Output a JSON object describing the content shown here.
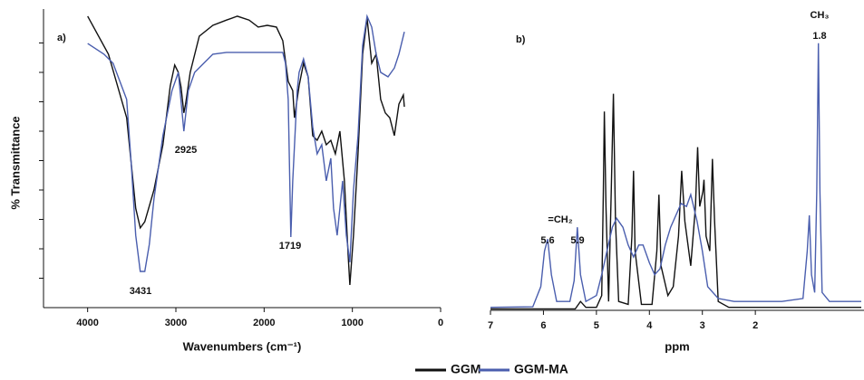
{
  "chart_data": [
    {
      "type": "line",
      "xlabel": "Wavenumbers (cm⁻¹)",
      "ylabel": "% Transmittance",
      "xlim": [
        4500,
        0
      ],
      "xticks": [
        4000,
        3000,
        2000,
        1000,
        0
      ],
      "ylim": [
        0,
        100
      ],
      "yticks": [
        10,
        20,
        30,
        40,
        50,
        60,
        70,
        80,
        90
      ],
      "annotations": [
        "a)",
        "3431",
        "2925",
        "1719"
      ],
      "series": [
        {
          "name": "GGM",
          "color": "#111111",
          "x": [
            4000,
            3764,
            3558,
            3455,
            3404,
            3352,
            3249,
            3147,
            3064,
            3013,
            2972,
            2941,
            2910,
            2890,
            2838,
            2735,
            2581,
            2427,
            2303,
            2170,
            2067,
            1964,
            1861,
            1789,
            1727,
            1676,
            1656,
            1604,
            1553,
            1501,
            1450,
            1399,
            1347,
            1296,
            1244,
            1193,
            1141,
            1090,
            1049,
            1028,
            987,
            936,
            884,
            833,
            781,
            730,
            679,
            627,
            576,
            524,
            473,
            422,
            411
          ],
          "values": [
            99.1,
            86.2,
            64.6,
            33.8,
            27.1,
            29.2,
            40,
            55.4,
            75.4,
            82.5,
            80,
            75,
            66.2,
            69.2,
            80,
            92.3,
            96,
            97.8,
            99.1,
            97.8,
            95.4,
            96,
            95.4,
            90.8,
            76.9,
            73.8,
            64.6,
            75.4,
            83.1,
            78.5,
            58.5,
            56.9,
            60,
            55.4,
            56.9,
            52.3,
            60,
            43.1,
            18.5,
            7.7,
            24.6,
            52.3,
            86.2,
            98.5,
            83.1,
            86.2,
            70.8,
            66.2,
            64.6,
            58.5,
            69.2,
            72.3,
            68.3
          ]
        },
        {
          "name": "GGM-MA",
          "color": "#4a5eae",
          "x": [
            4000,
            3815,
            3712,
            3558,
            3506,
            3455,
            3404,
            3352,
            3301,
            3249,
            3147,
            3044,
            2972,
            2910,
            2859,
            2787,
            2684,
            2581,
            2427,
            1913,
            1789,
            1758,
            1727,
            1697,
            1676,
            1625,
            1604,
            1553,
            1501,
            1450,
            1399,
            1347,
            1296,
            1244,
            1213,
            1172,
            1111,
            1069,
            1028,
            987,
            936,
            884,
            833,
            781,
            730,
            679,
            596,
            524,
            473,
            411
          ],
          "values": [
            89.8,
            86.2,
            83.1,
            70.8,
            49.2,
            24.6,
            12.3,
            12.3,
            21.5,
            36.9,
            58.5,
            73.8,
            80,
            60,
            73.8,
            80,
            83.1,
            86.2,
            86.8,
            86.8,
            86.8,
            83.1,
            70.8,
            24,
            43.1,
            73.8,
            80,
            84.6,
            78.5,
            61.5,
            52.3,
            55.4,
            43.1,
            50.8,
            33.8,
            24.6,
            43.1,
            24.6,
            15.4,
            40,
            58.5,
            89.2,
            99.1,
            95.4,
            86.2,
            80,
            78.5,
            81.5,
            86.2,
            93.8
          ]
        }
      ]
    },
    {
      "type": "line",
      "xlabel": "ppm",
      "xlim": [
        7,
        0
      ],
      "xticks": [
        7,
        6,
        5,
        4,
        3,
        2
      ],
      "ylim": [
        0,
        100
      ],
      "annotations": [
        "b)",
        "=CH₂",
        "5.6",
        "5.9",
        "CH₃",
        "1.8"
      ],
      "series": [
        {
          "color": "#111111",
          "x": [
            7,
            5.4,
            5.3,
            5.2,
            5.0,
            4.9,
            4.87,
            4.85,
            4.82,
            4.77,
            4.72,
            4.68,
            4.64,
            4.58,
            4.4,
            4.33,
            4.3,
            4.27,
            4.15,
            3.95,
            3.86,
            3.82,
            3.78,
            3.65,
            3.55,
            3.45,
            3.39,
            3.33,
            3.22,
            3.13,
            3.09,
            3.05,
            2.99,
            2.97,
            2.93,
            2.86,
            2.81,
            2.77,
            2.7,
            2.5,
            2.0,
            1.5,
            0
          ],
          "values": [
            0.5,
            0.5,
            3,
            1,
            1,
            5,
            40,
            67,
            35,
            3,
            40,
            73,
            30,
            3,
            2,
            25,
            47,
            20,
            2,
            2,
            20,
            39,
            15,
            5,
            8,
            25,
            47,
            30,
            15,
            35,
            55,
            35,
            40,
            44,
            25,
            20,
            51,
            30,
            3,
            1,
            1,
            1,
            1
          ]
        },
        {
          "color": "#4a5eae",
          "x": [
            7,
            6.2,
            6.05,
            5.98,
            5.92,
            5.85,
            5.75,
            5.5,
            5.42,
            5.36,
            5.3,
            5.2,
            5.0,
            4.9,
            4.8,
            4.7,
            4.62,
            4.5,
            4.4,
            4.3,
            4.2,
            4.12,
            4.0,
            3.9,
            3.8,
            3.7,
            3.6,
            3.5,
            3.4,
            3.3,
            3.22,
            3.1,
            3.0,
            2.9,
            2.7,
            2.4,
            2.0,
            1.5,
            1.1,
            1.02,
            0.98,
            0.94,
            0.88,
            0.84,
            0.81,
            0.78,
            0.74,
            0.6,
            0.3,
            0
          ],
          "values": [
            1,
            1.2,
            8,
            20,
            24,
            12,
            3,
            3,
            10,
            28,
            12,
            3,
            5,
            12,
            20,
            28,
            31,
            28,
            22,
            18,
            22,
            22,
            16,
            12,
            14,
            22,
            28,
            32,
            36,
            35,
            39,
            30,
            20,
            8,
            4,
            3,
            3,
            3,
            4,
            20,
            32,
            12,
            6,
            40,
            90,
            40,
            6,
            3,
            3,
            3
          ]
        }
      ]
    }
  ]
}
